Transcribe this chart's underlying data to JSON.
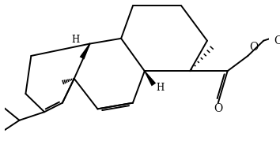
{
  "bg": "#ffffff",
  "lc": "#000000",
  "lw": 1.4,
  "fs": 8.5,
  "xlim": [
    0,
    10
  ],
  "ylim": [
    0,
    5.6
  ]
}
